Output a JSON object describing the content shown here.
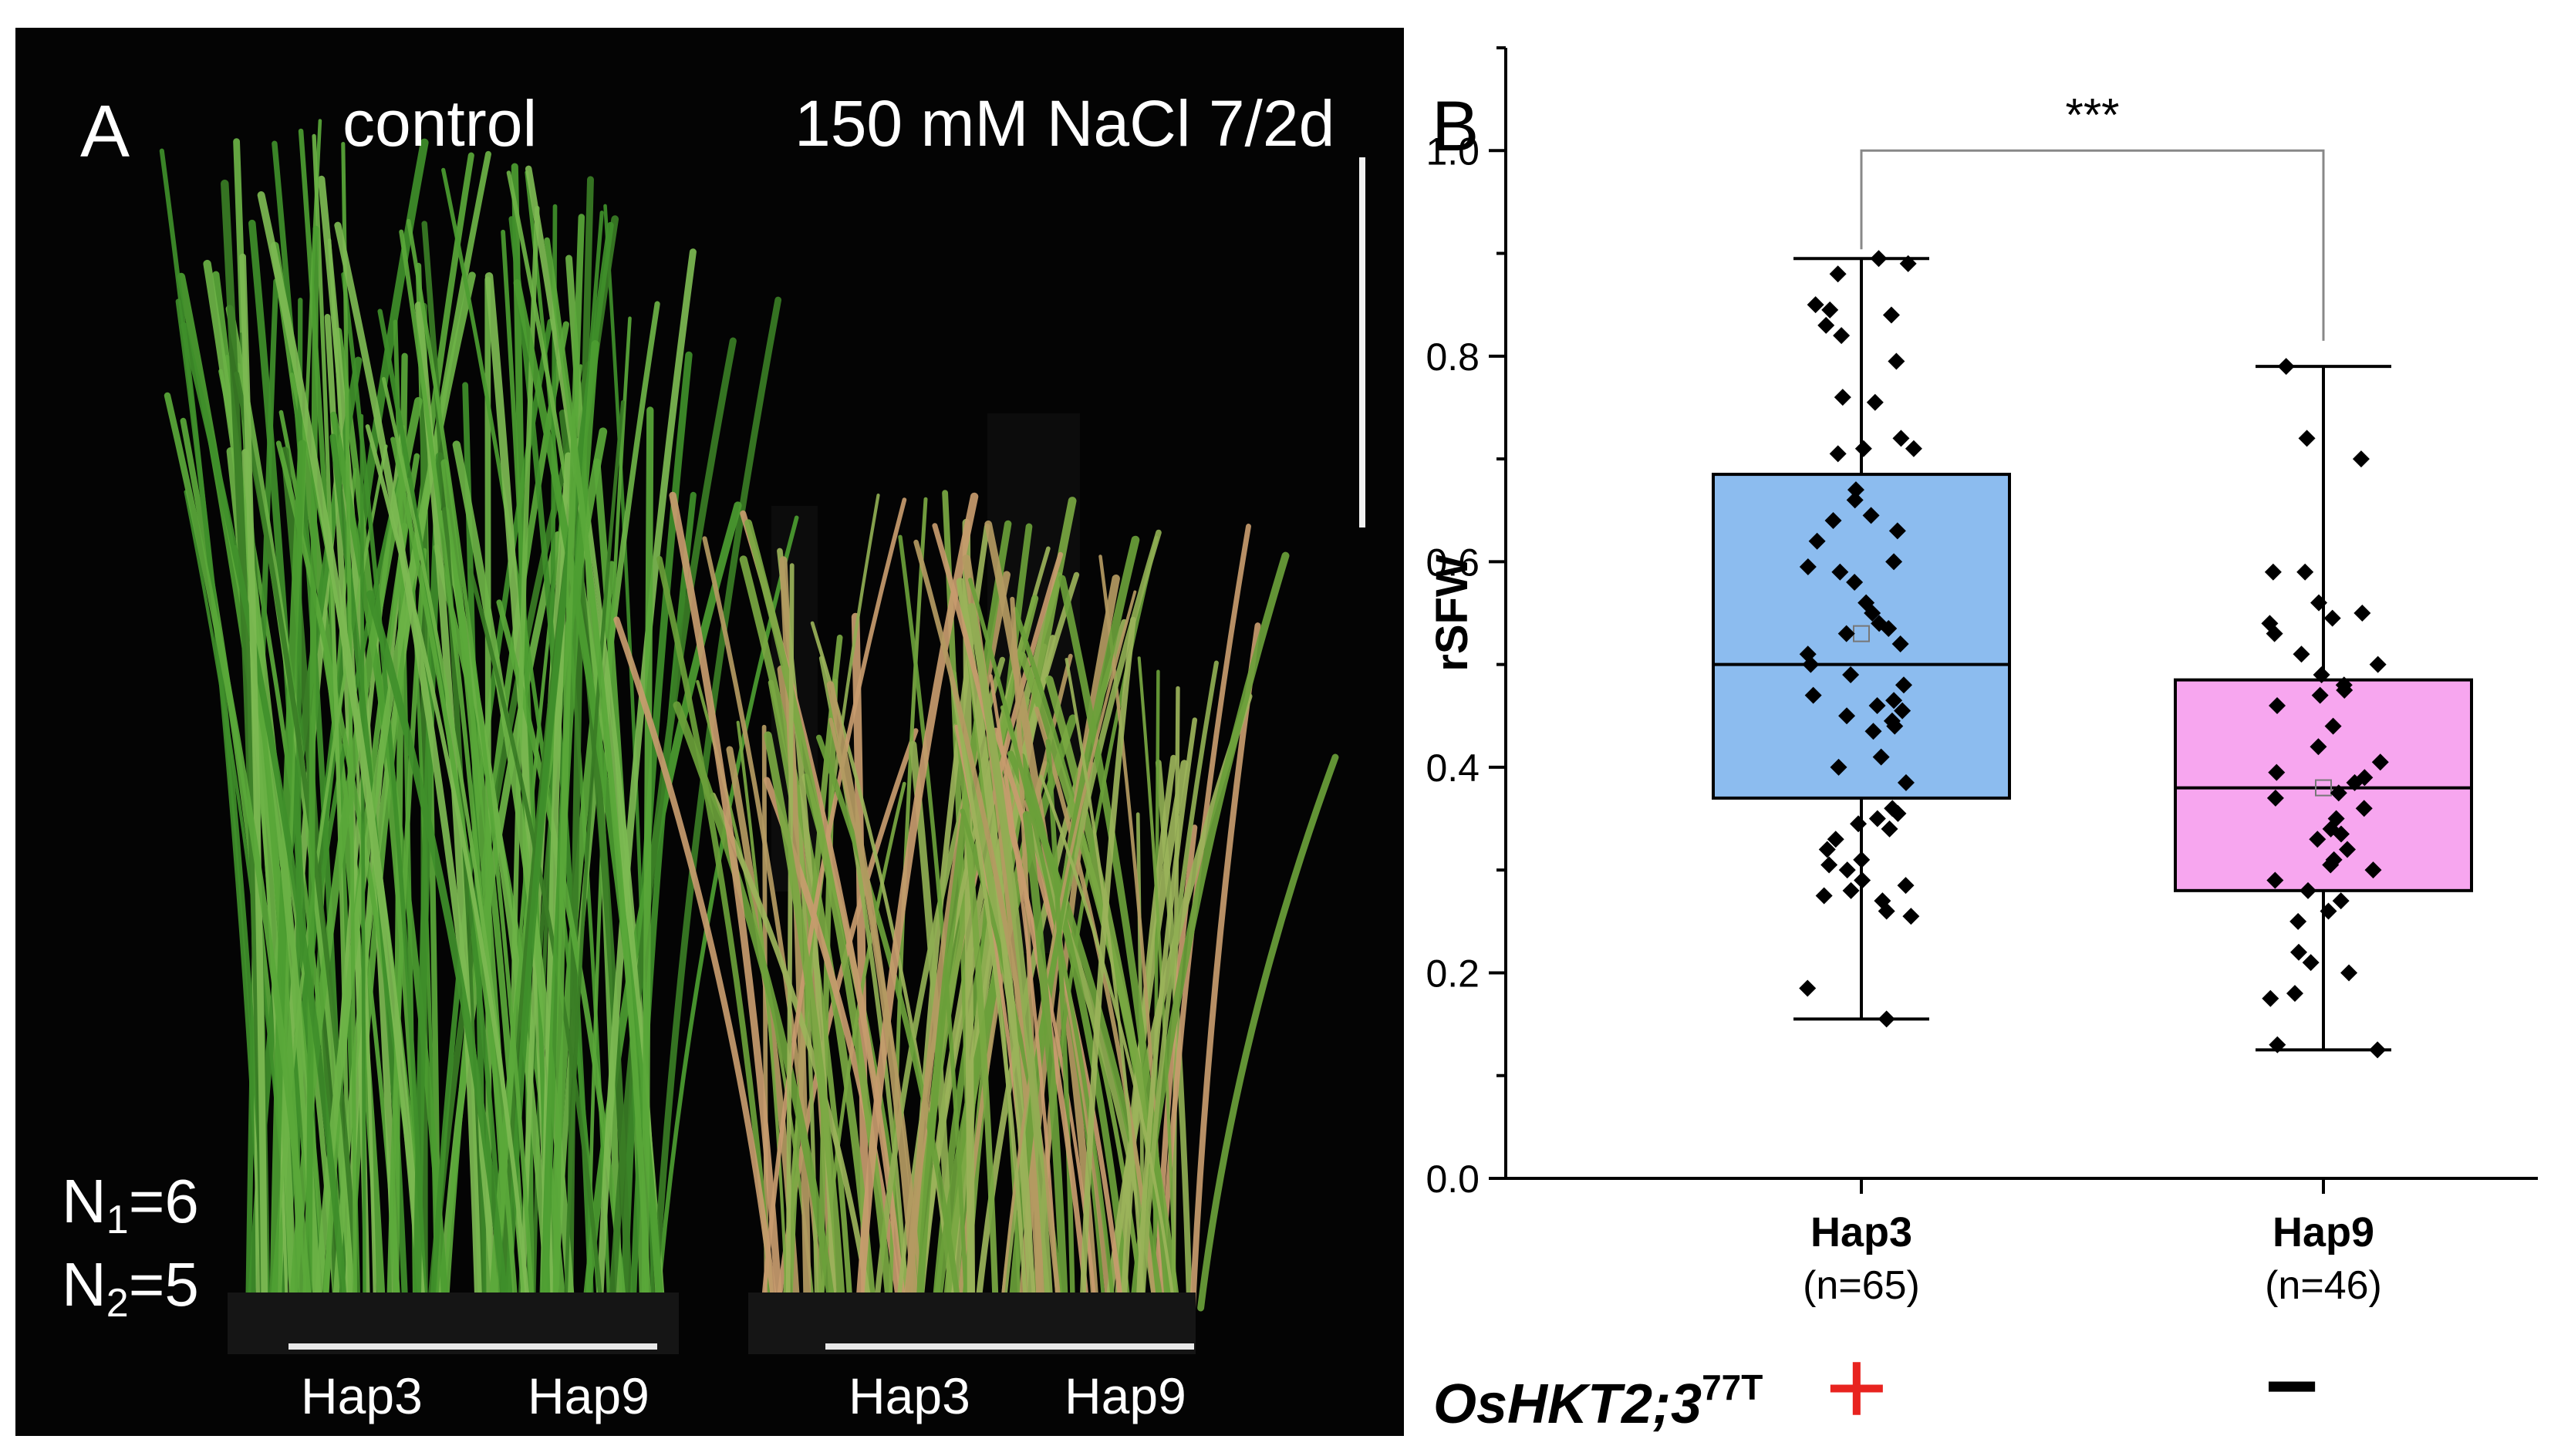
{
  "panel_a": {
    "label": "A",
    "conditions": {
      "control": "control",
      "salt": "150 mM NaCl 7/2d"
    },
    "n1": {
      "base": "N",
      "sub": "1",
      "value": "=6"
    },
    "n2": {
      "base": "N",
      "sub": "2",
      "value": "=5"
    },
    "plant_labels": [
      "Hap3",
      "Hap9",
      "Hap3",
      "Hap9"
    ]
  },
  "panel_b": {
    "label": "B",
    "genotype_label": "OsHKT2;3",
    "genotype_sup": "77T",
    "markers": {
      "hap3": "+",
      "hap9": "−"
    }
  },
  "chart_data": {
    "type": "box",
    "ylabel": "rSFW",
    "xlabel": "",
    "ylim": [
      0.0,
      1.1
    ],
    "yticks": [
      0.0,
      0.2,
      0.4,
      0.6,
      0.8,
      1.0
    ],
    "significance": "***",
    "colors": {
      "hap3": "#8cbcef",
      "hap9": "#f7a6ef"
    },
    "groups": [
      {
        "name": "Hap3",
        "n_label": "(n=65)",
        "min": 0.155,
        "q1": 0.37,
        "median": 0.5,
        "mean": 0.53,
        "q3": 0.685,
        "max": 0.895,
        "points": [
          0.895,
          0.89,
          0.88,
          0.85,
          0.845,
          0.84,
          0.83,
          0.82,
          0.795,
          0.76,
          0.755,
          0.72,
          0.71,
          0.71,
          0.705,
          0.67,
          0.66,
          0.645,
          0.64,
          0.63,
          0.62,
          0.6,
          0.595,
          0.59,
          0.58,
          0.56,
          0.55,
          0.54,
          0.535,
          0.53,
          0.52,
          0.51,
          0.5,
          0.49,
          0.48,
          0.47,
          0.465,
          0.46,
          0.455,
          0.45,
          0.445,
          0.44,
          0.435,
          0.41,
          0.4,
          0.385,
          0.36,
          0.355,
          0.35,
          0.345,
          0.34,
          0.33,
          0.32,
          0.31,
          0.305,
          0.3,
          0.29,
          0.285,
          0.28,
          0.275,
          0.27,
          0.26,
          0.255,
          0.185,
          0.155
        ]
      },
      {
        "name": "Hap9",
        "n_label": "(n=46)",
        "min": 0.125,
        "q1": 0.28,
        "median": 0.38,
        "mean": 0.38,
        "q3": 0.485,
        "max": 0.79,
        "points": [
          0.79,
          0.72,
          0.7,
          0.59,
          0.59,
          0.56,
          0.55,
          0.545,
          0.54,
          0.53,
          0.51,
          0.5,
          0.49,
          0.48,
          0.475,
          0.47,
          0.46,
          0.44,
          0.42,
          0.405,
          0.395,
          0.39,
          0.385,
          0.375,
          0.37,
          0.36,
          0.35,
          0.34,
          0.335,
          0.33,
          0.32,
          0.31,
          0.305,
          0.3,
          0.29,
          0.28,
          0.27,
          0.26,
          0.25,
          0.22,
          0.21,
          0.2,
          0.18,
          0.175,
          0.13,
          0.125
        ]
      }
    ]
  }
}
